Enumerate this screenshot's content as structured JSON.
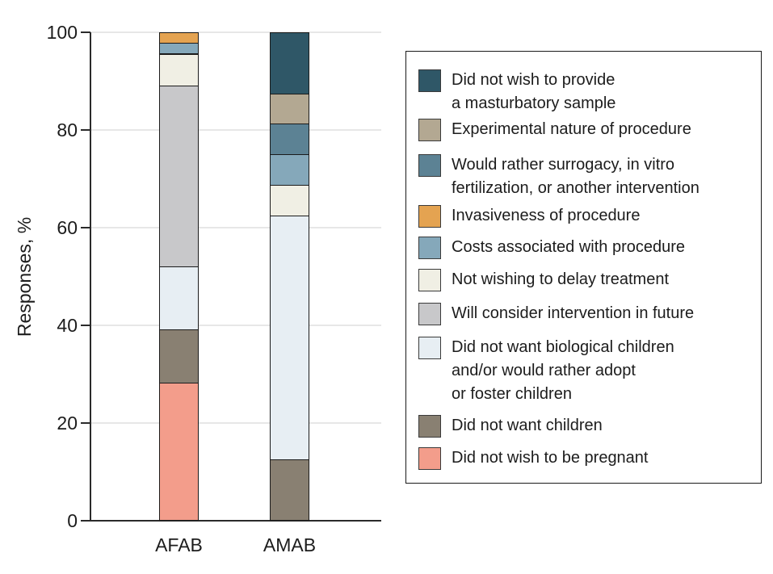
{
  "figure": {
    "y_axis_label": "Responses, %",
    "x_axis_categories": [
      "AFAB",
      "AMAB"
    ]
  },
  "chart_data": {
    "type": "bar",
    "subtype": "stacked-percentage",
    "title": "",
    "xlabel": "",
    "ylabel": "Responses, %",
    "categories": [
      "AFAB",
      "AMAB"
    ],
    "ylim": [
      0,
      100
    ],
    "yticks": [
      0,
      20,
      40,
      60,
      80,
      100
    ],
    "grid": "horizontal",
    "legend_position": "right",
    "series": [
      {
        "name": "Did not wish to provide a masturbatory sample",
        "color": "#2f5767",
        "values": [
          0,
          12.5
        ]
      },
      {
        "name": "Experimental nature of procedure",
        "color": "#b3a892",
        "values": [
          0,
          6.25
        ]
      },
      {
        "name": "Would rather surrogacy, in vitro fertilization, or another intervention",
        "color": "#5c8294",
        "values": [
          0,
          6.25
        ]
      },
      {
        "name": "Invasiveness of procedure",
        "color": "#e4a351",
        "values": [
          2.2,
          0
        ]
      },
      {
        "name": "Costs associated with procedure",
        "color": "#85a8ba",
        "values": [
          2.2,
          6.25
        ]
      },
      {
        "name": "Not wishing to delay treatment",
        "color": "#f0efe4",
        "values": [
          6.5,
          6.25
        ]
      },
      {
        "name": "Will consider intervention in future",
        "color": "#c8c8ca",
        "values": [
          37.0,
          0
        ]
      },
      {
        "name": "Did not want biological children and/or would rather adopt or foster children",
        "color": "#e7eef3",
        "values": [
          13.0,
          50.0
        ]
      },
      {
        "name": "Did not want children",
        "color": "#898072",
        "values": [
          10.9,
          12.5
        ]
      },
      {
        "name": "Did not wish to be pregnant",
        "color": "#f39d8b",
        "values": [
          28.3,
          0
        ]
      }
    ]
  },
  "legend": {
    "items": [
      {
        "label": "Did not wish to provide\na masturbatory sample",
        "color": "#2f5767"
      },
      {
        "label": "Experimental nature of procedure",
        "color": "#b3a892"
      },
      {
        "label": "Would rather surrogacy, in vitro\nfertilization, or another intervention",
        "color": "#5c8294"
      },
      {
        "label": "Invasiveness of procedure",
        "color": "#e4a351"
      },
      {
        "label": "Costs associated with procedure",
        "color": "#85a8ba"
      },
      {
        "label": "Not wishing to delay treatment",
        "color": "#f0efe4"
      },
      {
        "label": "Will consider intervention in future",
        "color": "#c8c8ca"
      },
      {
        "label": "Did not want biological children\nand/or would rather adopt\nor foster children",
        "color": "#e7eef3"
      },
      {
        "label": "Did not want children",
        "color": "#898072"
      },
      {
        "label": "Did not wish to be pregnant",
        "color": "#f39d8b"
      }
    ]
  }
}
